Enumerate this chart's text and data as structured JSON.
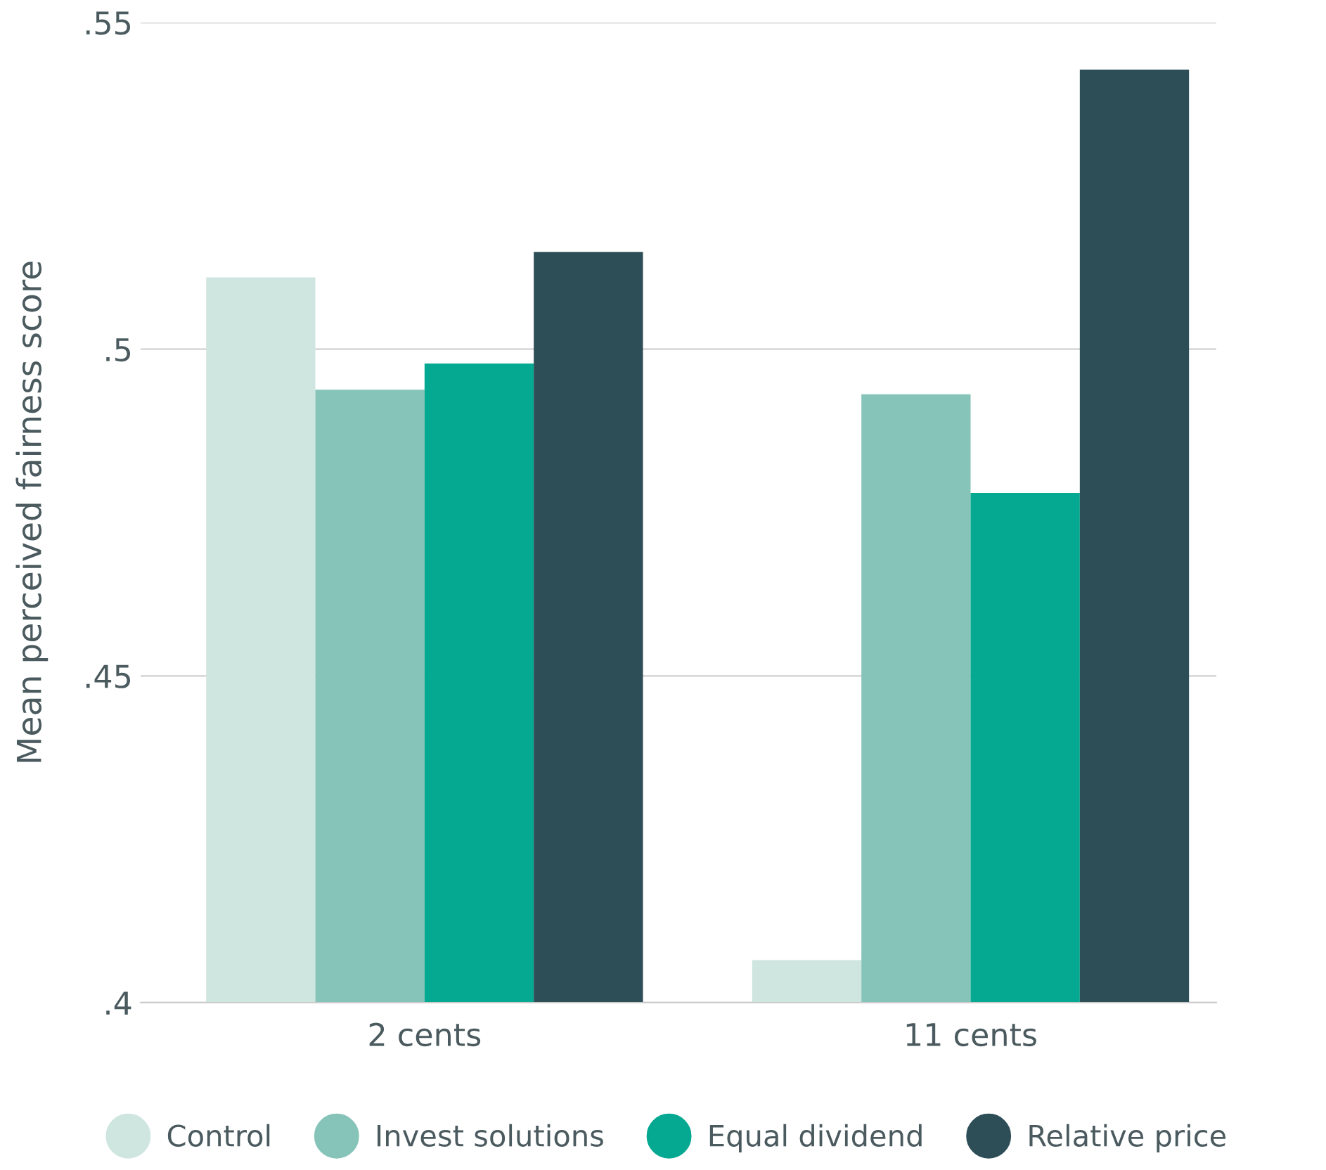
{
  "chart_data": {
    "type": "bar",
    "ylabel": "Mean perceived fairness score",
    "categories": [
      "2 cents",
      "11 cents"
    ],
    "series": [
      {
        "name": "Control",
        "color": "#cfe5e0",
        "values": [
          0.511,
          0.4065
        ]
      },
      {
        "name": "Invest solutions",
        "color": "#86c3b8",
        "values": [
          0.4938,
          0.4931
        ]
      },
      {
        "name": "Equal dividend",
        "color": "#05a891",
        "values": [
          0.4978,
          0.478
        ]
      },
      {
        "name": "Relative price",
        "color": "#2d4e57",
        "values": [
          0.5149,
          0.5428
        ]
      }
    ],
    "ylim": [
      0.4,
      0.55
    ],
    "yticks": [
      {
        "value": 0.4,
        "label": ".4"
      },
      {
        "value": 0.45,
        "label": ".45"
      },
      {
        "value": 0.5,
        "label": ".5"
      },
      {
        "value": 0.55,
        "label": ".55"
      }
    ],
    "grid": "y",
    "legend": "bottom"
  }
}
